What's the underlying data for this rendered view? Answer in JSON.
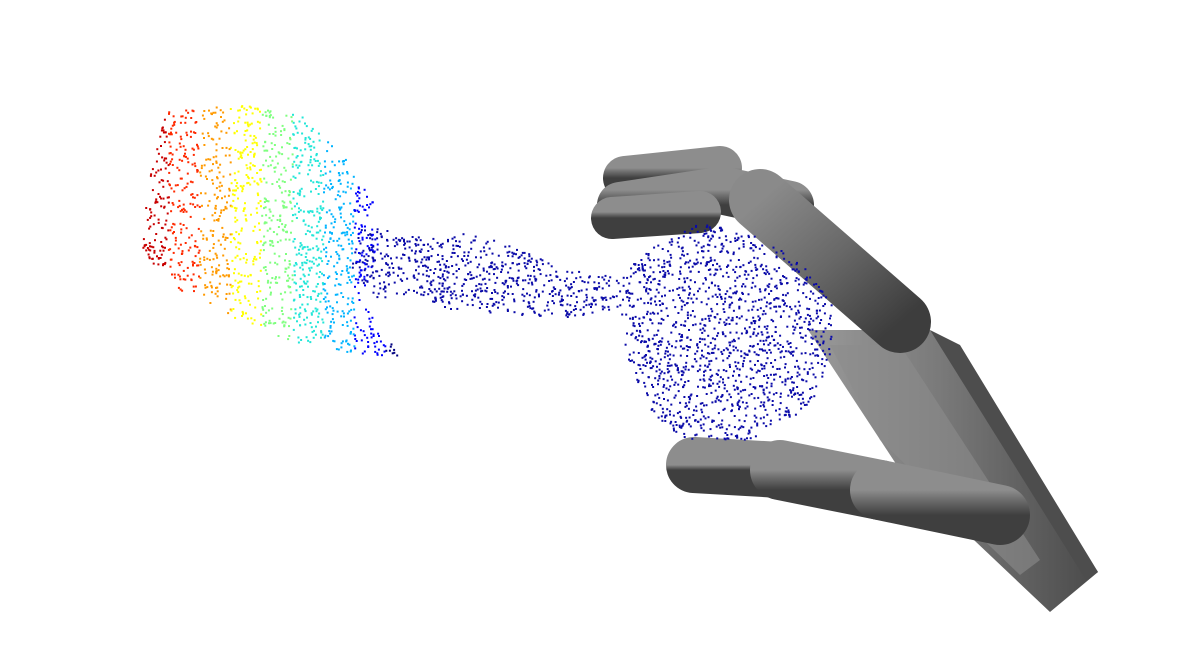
{
  "scene": {
    "background": "#ffffff",
    "point_cloud": {
      "colormap": [
        "#00007f",
        "#0000ff",
        "#00b4ff",
        "#22e6d8",
        "#7fff7f",
        "#ffff00",
        "#ff9a00",
        "#ff2a00",
        "#c80000"
      ],
      "point_color": "#0a0aa8"
    },
    "robot_hand": {
      "material_color": "#6b6b6b",
      "highlight_color": "#9a9a9a",
      "shadow_color": "#3a3a3a"
    }
  }
}
